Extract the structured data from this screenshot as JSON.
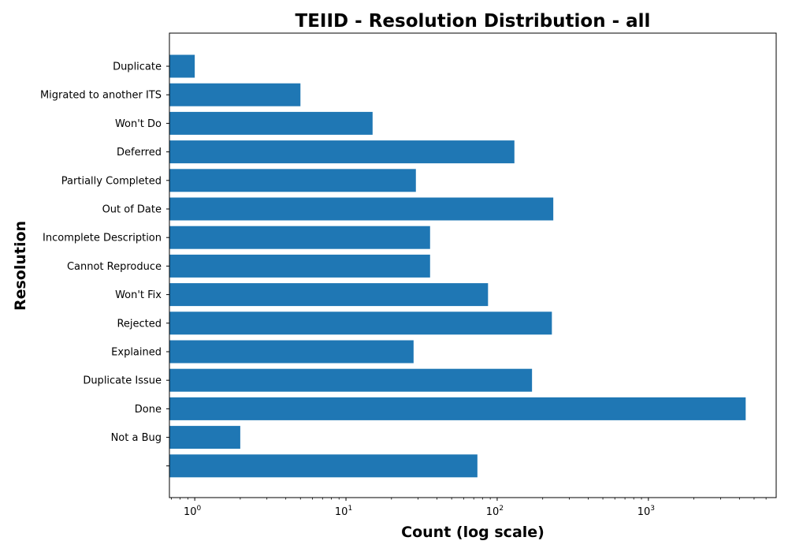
{
  "chart_data": {
    "type": "bar",
    "orientation": "horizontal",
    "title": "TEIID - Resolution Distribution - all",
    "xlabel": "Count (log scale)",
    "ylabel": "Resolution",
    "x_scale": "log",
    "xlim": [
      0.68,
      7000
    ],
    "x_ticks": [
      {
        "value": 1,
        "base": "10",
        "exp": "0"
      },
      {
        "value": 10,
        "base": "10",
        "exp": "1"
      },
      {
        "value": 100,
        "base": "10",
        "exp": "2"
      },
      {
        "value": 1000,
        "base": "10",
        "exp": "3"
      }
    ],
    "categories": [
      "Duplicate",
      "Migrated to another ITS",
      "Won't Do",
      "Deferred",
      "Partially Completed",
      "Out of Date",
      "Incomplete Description",
      "Cannot Reproduce",
      "Won't Fix",
      "Rejected",
      "Explained",
      "Duplicate Issue",
      "Done",
      "Not a Bug",
      ""
    ],
    "values": [
      1,
      5,
      15,
      130,
      29,
      235,
      36,
      36,
      87,
      230,
      28,
      170,
      4400,
      2,
      74
    ],
    "bar_color": "#1f77b4",
    "grid": false
  }
}
